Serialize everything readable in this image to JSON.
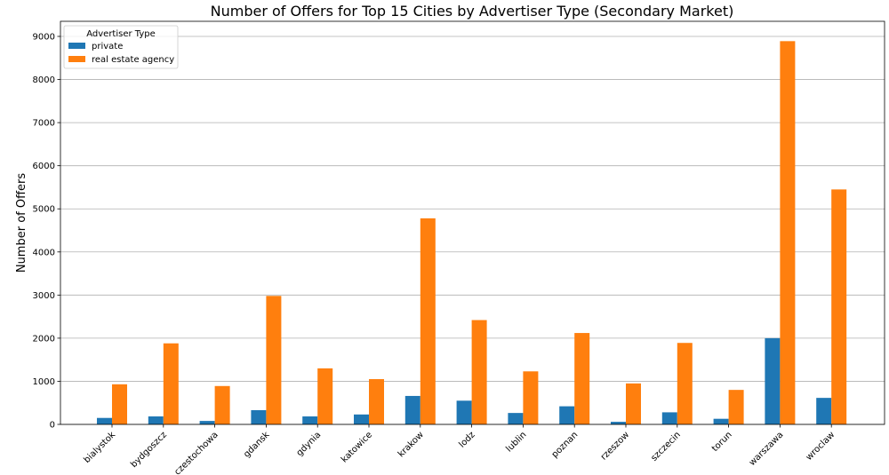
{
  "chart_data": {
    "type": "bar",
    "title": "Number of Offers for Top 15 Cities by Advertiser Type (Secondary Market)",
    "xlabel": "",
    "ylabel": "Number of Offers",
    "ylim": [
      0,
      9350
    ],
    "yticks": [
      0,
      1000,
      2000,
      3000,
      4000,
      5000,
      6000,
      7000,
      8000,
      9000
    ],
    "grid": true,
    "legend": {
      "title": "Advertiser Type",
      "placement": "top-left"
    },
    "categories": [
      "bialystok",
      "bydgoszcz",
      "czestochowa",
      "gdansk",
      "gdynia",
      "katowice",
      "krakow",
      "lodz",
      "lublin",
      "poznan",
      "rzeszow",
      "szczecin",
      "torun",
      "warszawa",
      "wroclaw"
    ],
    "series": [
      {
        "name": "private",
        "color": "#1f77b4",
        "values": [
          150,
          185,
          80,
          330,
          185,
          230,
          660,
          550,
          265,
          420,
          60,
          280,
          130,
          2000,
          615
        ]
      },
      {
        "name": "real estate agency",
        "color": "#ff7f0e",
        "values": [
          930,
          1880,
          890,
          2980,
          1300,
          1050,
          4780,
          2420,
          1230,
          2120,
          950,
          1890,
          800,
          8890,
          5450
        ]
      }
    ]
  }
}
